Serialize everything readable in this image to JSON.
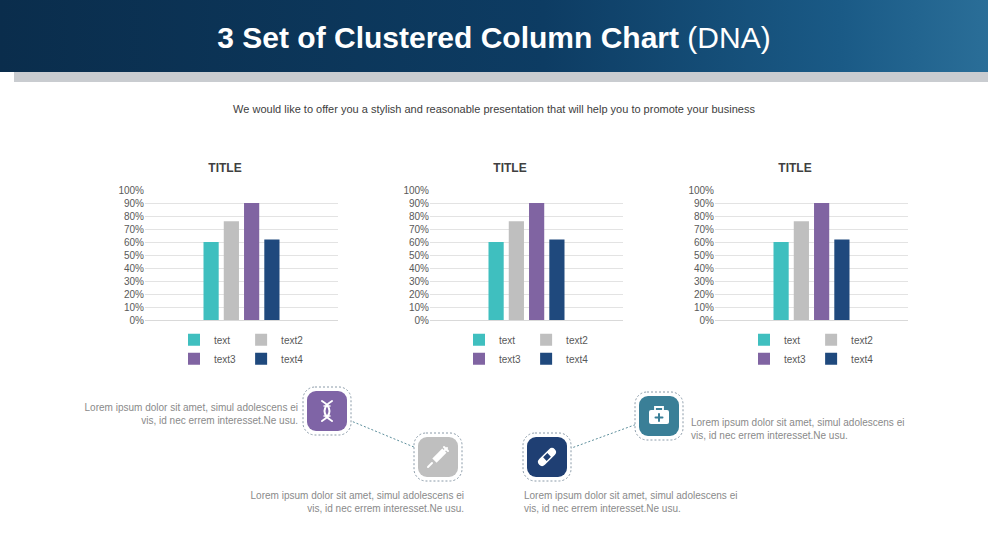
{
  "header": {
    "title": "3 Set of Clustered Column Chart",
    "title_note": "(DNA)",
    "subtitle": "We would like to offer you a stylish and reasonable presentation that will help you to promote your business"
  },
  "chart_data": [
    {
      "type": "bar",
      "title": "TITLE",
      "categories": [
        null
      ],
      "series": [
        {
          "name": "text",
          "color": "#3fbfbf",
          "values": [
            60
          ]
        },
        {
          "name": "text2",
          "color": "#bfbfbf",
          "values": [
            76
          ]
        },
        {
          "name": "text3",
          "color": "#8064a2",
          "values": [
            90
          ]
        },
        {
          "name": "text4",
          "color": "#1f497d",
          "values": [
            62
          ]
        }
      ],
      "ylim": [
        0,
        100
      ],
      "yticks": [
        {
          "value": 0,
          "label": "0%"
        },
        {
          "value": 10,
          "label": "10%"
        },
        {
          "value": 20,
          "label": "20%"
        },
        {
          "value": 30,
          "label": "30%"
        },
        {
          "value": 40,
          "label": "40%"
        },
        {
          "value": 50,
          "label": "50%"
        },
        {
          "value": 60,
          "label": "60%"
        },
        {
          "value": 70,
          "label": "70%"
        },
        {
          "value": 80,
          "label": "80%"
        },
        {
          "value": 90,
          "label": "90%"
        },
        {
          "value": 100,
          "label": "100%"
        }
      ],
      "grid": true,
      "legend": "bottom",
      "tick_labels": "y"
    },
    {
      "type": "bar",
      "title": "TITLE",
      "categories": [
        null
      ],
      "series": [
        {
          "name": "text",
          "color": "#3fbfbf",
          "values": [
            60
          ]
        },
        {
          "name": "text2",
          "color": "#bfbfbf",
          "values": [
            76
          ]
        },
        {
          "name": "text3",
          "color": "#8064a2",
          "values": [
            90
          ]
        },
        {
          "name": "text4",
          "color": "#1f497d",
          "values": [
            62
          ]
        }
      ],
      "ylim": [
        0,
        100
      ],
      "yticks": [
        {
          "value": 0,
          "label": "0%"
        },
        {
          "value": 10,
          "label": "10%"
        },
        {
          "value": 20,
          "label": "20%"
        },
        {
          "value": 30,
          "label": "30%"
        },
        {
          "value": 40,
          "label": "40%"
        },
        {
          "value": 50,
          "label": "50%"
        },
        {
          "value": 60,
          "label": "60%"
        },
        {
          "value": 70,
          "label": "70%"
        },
        {
          "value": 80,
          "label": "80%"
        },
        {
          "value": 90,
          "label": "90%"
        },
        {
          "value": 100,
          "label": "100%"
        }
      ],
      "grid": true,
      "legend": "bottom",
      "tick_labels": "y"
    },
    {
      "type": "bar",
      "title": "TITLE",
      "categories": [
        null
      ],
      "series": [
        {
          "name": "text",
          "color": "#3fbfbf",
          "values": [
            60
          ]
        },
        {
          "name": "text2",
          "color": "#bfbfbf",
          "values": [
            76
          ]
        },
        {
          "name": "text3",
          "color": "#8064a2",
          "values": [
            90
          ]
        },
        {
          "name": "text4",
          "color": "#1f497d",
          "values": [
            62
          ]
        }
      ],
      "ylim": [
        0,
        100
      ],
      "yticks": [
        {
          "value": 0,
          "label": "0%"
        },
        {
          "value": 10,
          "label": "10%"
        },
        {
          "value": 20,
          "label": "20%"
        },
        {
          "value": 30,
          "label": "30%"
        },
        {
          "value": 40,
          "label": "40%"
        },
        {
          "value": 50,
          "label": "50%"
        },
        {
          "value": 60,
          "label": "60%"
        },
        {
          "value": 70,
          "label": "70%"
        },
        {
          "value": 80,
          "label": "80%"
        },
        {
          "value": 90,
          "label": "90%"
        },
        {
          "value": 100,
          "label": "100%"
        }
      ],
      "grid": true,
      "legend": "bottom",
      "tick_labels": "y"
    }
  ],
  "notes": [
    "Lorem ipsum dolor sit amet, simul adolescens ei vis, id nec errem interesset.Ne usu.",
    "Lorem ipsum dolor sit amet, simul adolescens ei vis, id nec errem interesset.Ne usu.",
    "Lorem ipsum dolor sit amet, simul adolescens ei vis, id nec errem interesset.Ne usu.",
    "Lorem ipsum dolor sit amet, simul adolescens ei vis, id nec errem interesset.Ne usu."
  ]
}
